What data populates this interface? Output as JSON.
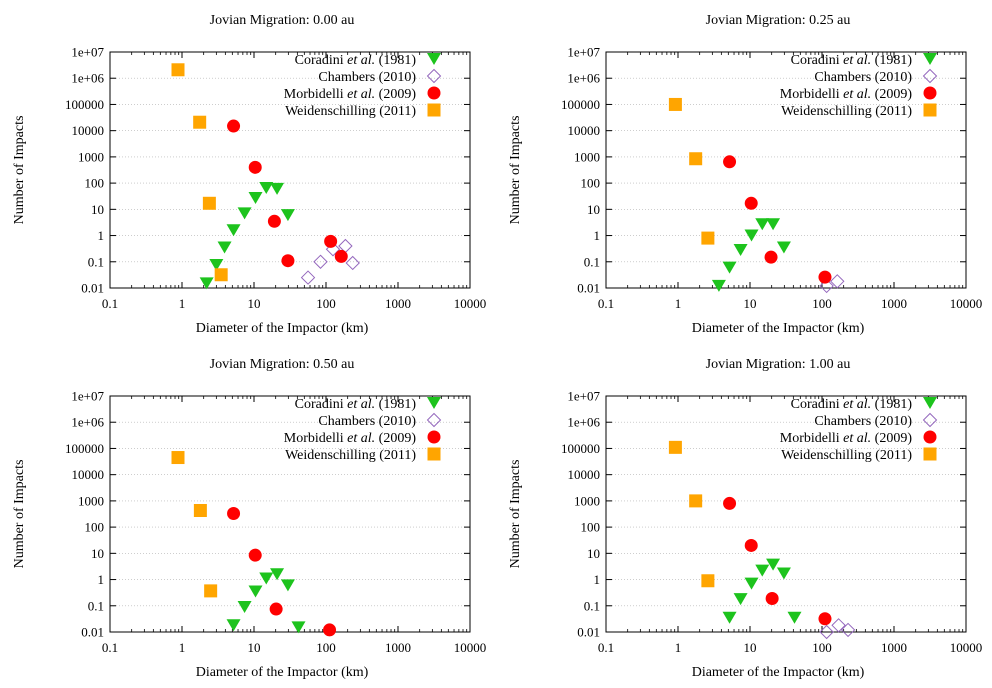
{
  "chart_data": [
    {
      "type": "scatter",
      "title": "Jovian Migration: 0.00 au",
      "xlabel": "Diameter of the Impactor (km)",
      "ylabel": "Number of Impacts",
      "xscale": "log",
      "yscale": "log",
      "xlim": [
        0.1,
        10000
      ],
      "ylim": [
        0.01,
        10000000
      ],
      "xticks": [
        "0.1",
        "1",
        "10",
        "100",
        "1000",
        "10000"
      ],
      "yticks": [
        "0.01",
        "0.1",
        "1",
        "10",
        "100",
        "1000",
        "10000",
        "100000",
        "1e+06",
        "1e+07"
      ],
      "grid": "horizontal-dotted",
      "legend_position": "top-right",
      "series": [
        {
          "name": "Coradini et al. (1981)",
          "marker": "triangle-down",
          "color": "#1dc31d",
          "x": [
            2.2,
            3.0,
            3.9,
            5.2,
            7.4,
            10.5,
            14.8,
            20.9,
            29.6
          ],
          "y": [
            0.015,
            0.075,
            0.35,
            1.6,
            7.0,
            27,
            65,
            60,
            6.0
          ]
        },
        {
          "name": "Chambers (2010)",
          "marker": "diamond-open",
          "color": "#9467bd",
          "x": [
            56.3,
            83.9,
            125,
            186,
            235
          ],
          "y": [
            0.025,
            0.1,
            0.3,
            0.4,
            0.09
          ]
        },
        {
          "name": "Morbidelli et al. (2009)",
          "marker": "circle",
          "color": "#ff0000",
          "x": [
            5.2,
            10.4,
            19.2,
            29.6,
            116,
            163
          ],
          "y": [
            15000,
            400,
            3.5,
            0.11,
            0.6,
            0.16
          ]
        },
        {
          "name": "Weidenschilling (2011)",
          "marker": "square",
          "color": "#ffa500",
          "x": [
            0.88,
            1.76,
            2.4,
            3.5
          ],
          "y": [
            2100000,
            21000,
            17,
            0.032
          ]
        }
      ]
    },
    {
      "type": "scatter",
      "title": "Jovian Migration: 0.25 au",
      "xlabel": "Diameter of the Impactor (km)",
      "ylabel": "Number of Impacts",
      "xscale": "log",
      "yscale": "log",
      "xlim": [
        0.1,
        10000
      ],
      "ylim": [
        0.01,
        10000000
      ],
      "xticks": [
        "0.1",
        "1",
        "10",
        "100",
        "1000",
        "10000"
      ],
      "yticks": [
        "0.01",
        "0.1",
        "1",
        "10",
        "100",
        "1000",
        "10000",
        "100000",
        "1e+06",
        "1e+07"
      ],
      "grid": "horizontal-dotted",
      "legend_position": "top-right",
      "series": [
        {
          "name": "Coradini et al. (1981)",
          "marker": "triangle-down",
          "color": "#1dc31d",
          "x": [
            3.7,
            5.2,
            7.4,
            10.5,
            14.8,
            20.9,
            29.6
          ],
          "y": [
            0.012,
            0.06,
            0.28,
            1.0,
            2.7,
            2.7,
            0.35
          ]
        },
        {
          "name": "Chambers (2010)",
          "marker": "diamond-open",
          "color": "#9467bd",
          "x": [
            116,
            163
          ],
          "y": [
            0.012,
            0.018
          ]
        },
        {
          "name": "Morbidelli et al. (2009)",
          "marker": "circle",
          "color": "#ff0000",
          "x": [
            5.2,
            10.4,
            19.6,
            110
          ],
          "y": [
            650,
            17,
            0.15,
            0.026
          ]
        },
        {
          "name": "Weidenschilling (2011)",
          "marker": "square",
          "color": "#ffa500",
          "x": [
            0.92,
            1.76,
            2.6
          ],
          "y": [
            100000,
            850,
            0.8
          ]
        }
      ]
    },
    {
      "type": "scatter",
      "title": "Jovian Migration: 0.50 au",
      "xlabel": "Diameter of the Impactor (km)",
      "ylabel": "Number of Impacts",
      "xscale": "log",
      "yscale": "log",
      "xlim": [
        0.1,
        10000
      ],
      "ylim": [
        0.01,
        10000000
      ],
      "xticks": [
        "0.1",
        "1",
        "10",
        "100",
        "1000",
        "10000"
      ],
      "yticks": [
        "0.01",
        "0.1",
        "1",
        "10",
        "100",
        "1000",
        "10000",
        "100000",
        "1e+06",
        "1e+07"
      ],
      "grid": "horizontal-dotted",
      "legend_position": "top-right",
      "series": [
        {
          "name": "Coradini et al. (1981)",
          "marker": "triangle-down",
          "color": "#1dc31d",
          "x": [
            5.2,
            7.4,
            10.5,
            14.8,
            20.9,
            29.6,
            41.5
          ],
          "y": [
            0.018,
            0.09,
            0.35,
            1.1,
            1.6,
            0.6,
            0.015
          ]
        },
        {
          "name": "Chambers (2010)",
          "marker": "diamond-open",
          "color": "#9467bd",
          "x": [],
          "y": []
        },
        {
          "name": "Morbidelli et al. (2009)",
          "marker": "circle",
          "color": "#ff0000",
          "x": [
            5.2,
            10.4,
            20.3,
            112
          ],
          "y": [
            330,
            8.5,
            0.075,
            0.012
          ]
        },
        {
          "name": "Weidenschilling (2011)",
          "marker": "square",
          "color": "#ffa500",
          "x": [
            0.88,
            1.8,
            2.5
          ],
          "y": [
            45000,
            430,
            0.37
          ]
        }
      ]
    },
    {
      "type": "scatter",
      "title": "Jovian Migration: 1.00 au",
      "xlabel": "Diameter of the Impactor (km)",
      "ylabel": "Number of Impacts",
      "xscale": "log",
      "yscale": "log",
      "xlim": [
        0.1,
        10000
      ],
      "ylim": [
        0.01,
        10000000
      ],
      "xticks": [
        "0.1",
        "1",
        "10",
        "100",
        "1000",
        "10000"
      ],
      "yticks": [
        "0.01",
        "0.1",
        "1",
        "10",
        "100",
        "1000",
        "10000",
        "100000",
        "1e+06",
        "1e+07"
      ],
      "grid": "horizontal-dotted",
      "legend_position": "top-right",
      "series": [
        {
          "name": "Coradini et al. (1981)",
          "marker": "triangle-down",
          "color": "#1dc31d",
          "x": [
            5.2,
            7.4,
            10.5,
            14.8,
            20.9,
            29.6,
            41.5
          ],
          "y": [
            0.035,
            0.18,
            0.7,
            2.2,
            3.7,
            1.7,
            0.035
          ]
        },
        {
          "name": "Chambers (2010)",
          "marker": "diamond-open",
          "color": "#9467bd",
          "x": [
            116,
            170,
            230
          ],
          "y": [
            0.01,
            0.018,
            0.012
          ]
        },
        {
          "name": "Morbidelli et al. (2009)",
          "marker": "circle",
          "color": "#ff0000",
          "x": [
            5.2,
            10.4,
            20.3,
            110
          ],
          "y": [
            800,
            20,
            0.19,
            0.032
          ]
        },
        {
          "name": "Weidenschilling (2011)",
          "marker": "square",
          "color": "#ffa500",
          "x": [
            0.92,
            1.76,
            2.6
          ],
          "y": [
            110000,
            1000,
            0.9
          ]
        }
      ]
    }
  ]
}
